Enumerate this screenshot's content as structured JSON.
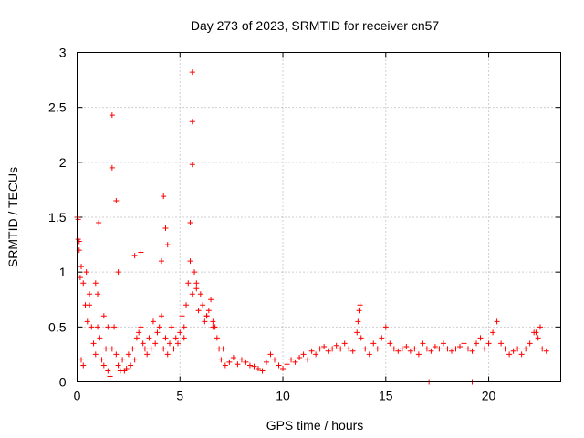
{
  "chart_data": {
    "type": "scatter",
    "title": "Day 273 of 2023, SRMTID for receiver cn57",
    "xlabel": "GPS time / hours",
    "ylabel": "SRMTID / TECUs",
    "xlim": [
      0,
      23.5
    ],
    "ylim": [
      0,
      3
    ],
    "xticks": [
      0,
      5,
      10,
      15,
      20
    ],
    "xtick_labels": [
      "0",
      "5",
      "10",
      "15",
      "20"
    ],
    "yticks": [
      0,
      0.5,
      1,
      1.5,
      2,
      2.5,
      3
    ],
    "ytick_labels": [
      "0",
      "0.5",
      "1",
      "1.5",
      "2",
      "2.5",
      "3"
    ],
    "grid": true,
    "marker": "plus",
    "marker_color": "#ff0000",
    "series": [
      {
        "name": "SRMTID",
        "x": [
          0.0,
          0.1,
          0.2,
          0.3,
          0.4,
          0.5,
          0.6,
          0.7,
          0.8,
          0.9,
          1.0,
          1.1,
          1.2,
          1.3,
          1.4,
          1.5,
          1.6,
          1.7,
          1.8,
          1.9,
          2.0,
          2.1,
          2.2,
          2.3,
          2.4,
          2.5,
          2.6,
          2.7,
          2.8,
          2.9,
          3.0,
          3.1,
          3.2,
          3.3,
          3.4,
          3.5,
          3.6,
          3.7,
          3.8,
          3.9,
          4.0,
          4.1,
          4.2,
          4.3,
          4.4,
          4.5,
          4.6,
          4.7,
          4.8,
          4.9,
          5.0,
          5.1,
          5.2,
          5.3,
          5.4,
          5.5,
          5.6,
          5.7,
          5.8,
          5.9,
          6.0,
          6.1,
          6.2,
          6.3,
          6.4,
          6.5,
          6.6,
          6.7,
          6.8,
          6.9,
          7.0,
          7.2,
          7.4,
          7.6,
          7.8,
          8.0,
          8.2,
          8.4,
          8.6,
          8.8,
          9.0,
          9.2,
          9.4,
          9.6,
          9.8,
          10.0,
          10.2,
          10.4,
          10.6,
          10.8,
          11.0,
          11.2,
          11.4,
          11.6,
          11.8,
          12.0,
          12.2,
          12.4,
          12.6,
          12.8,
          13.0,
          13.2,
          13.4,
          13.6,
          13.7,
          13.8,
          14.0,
          14.2,
          14.4,
          14.6,
          14.8,
          15.0,
          15.2,
          15.4,
          15.6,
          15.8,
          16.0,
          16.2,
          16.4,
          16.6,
          16.8,
          17.0,
          17.2,
          17.4,
          17.6,
          17.8,
          18.0,
          18.2,
          18.4,
          18.6,
          18.8,
          19.0,
          19.2,
          19.4,
          19.6,
          19.8,
          20.0,
          20.2,
          20.4,
          20.6,
          20.8,
          21.0,
          21.2,
          21.4,
          21.6,
          21.8,
          22.0,
          22.2,
          22.4,
          22.6,
          22.8,
          5.6,
          5.6,
          5.6,
          1.7,
          1.7,
          1.9,
          4.2,
          5.5,
          17.1,
          19.2,
          0.05,
          0.1,
          0.15,
          0.05,
          1.05,
          2.8,
          3.1,
          4.3,
          4.4,
          0.2,
          0.3,
          0.45,
          0.6,
          0.9,
          1.3,
          1.5,
          1.0,
          2.0,
          4.1,
          5.2,
          5.8,
          6.3,
          6.6,
          7.1,
          13.75,
          13.65,
          22.3,
          22.5
        ],
        "y": [
          1.5,
          1.28,
          1.05,
          0.9,
          0.7,
          0.55,
          0.8,
          0.5,
          0.35,
          0.25,
          0.5,
          0.4,
          0.2,
          0.15,
          0.3,
          0.1,
          0.05,
          0.3,
          0.5,
          0.25,
          0.15,
          0.1,
          0.2,
          0.1,
          0.12,
          0.25,
          0.15,
          0.3,
          0.2,
          0.4,
          0.45,
          0.5,
          0.35,
          0.3,
          0.25,
          0.4,
          0.3,
          0.55,
          0.35,
          0.45,
          0.5,
          0.6,
          0.3,
          0.4,
          0.25,
          0.35,
          0.5,
          0.3,
          0.4,
          0.35,
          0.45,
          0.6,
          0.5,
          0.7,
          0.9,
          1.1,
          0.8,
          1.0,
          0.85,
          0.65,
          0.8,
          0.7,
          0.55,
          0.6,
          0.65,
          0.75,
          0.55,
          0.5,
          0.4,
          0.3,
          0.2,
          0.15,
          0.18,
          0.22,
          0.16,
          0.2,
          0.18,
          0.15,
          0.14,
          0.12,
          0.1,
          0.18,
          0.25,
          0.2,
          0.15,
          0.12,
          0.16,
          0.2,
          0.18,
          0.22,
          0.25,
          0.2,
          0.28,
          0.25,
          0.3,
          0.32,
          0.28,
          0.3,
          0.33,
          0.3,
          0.35,
          0.3,
          0.28,
          0.45,
          0.65,
          0.4,
          0.3,
          0.25,
          0.35,
          0.3,
          0.4,
          0.5,
          0.35,
          0.3,
          0.28,
          0.3,
          0.32,
          0.28,
          0.3,
          0.25,
          0.35,
          0.3,
          0.28,
          0.32,
          0.3,
          0.35,
          0.3,
          0.28,
          0.3,
          0.32,
          0.35,
          0.3,
          0.28,
          0.35,
          0.4,
          0.3,
          0.35,
          0.45,
          0.55,
          0.35,
          0.3,
          0.25,
          0.28,
          0.3,
          0.25,
          0.3,
          0.35,
          0.45,
          0.4,
          0.3,
          0.28,
          2.82,
          2.37,
          1.98,
          2.43,
          1.95,
          1.65,
          1.69,
          1.45,
          0.0,
          0.0,
          1.48,
          1.2,
          0.95,
          1.3,
          1.45,
          1.15,
          1.18,
          1.4,
          1.25,
          0.2,
          0.15,
          1.0,
          0.7,
          0.9,
          0.6,
          0.5,
          0.8,
          1.0,
          1.1,
          0.4,
          0.9,
          0.6,
          0.5,
          0.3,
          0.7,
          0.55,
          0.45,
          0.5
        ]
      }
    ]
  }
}
